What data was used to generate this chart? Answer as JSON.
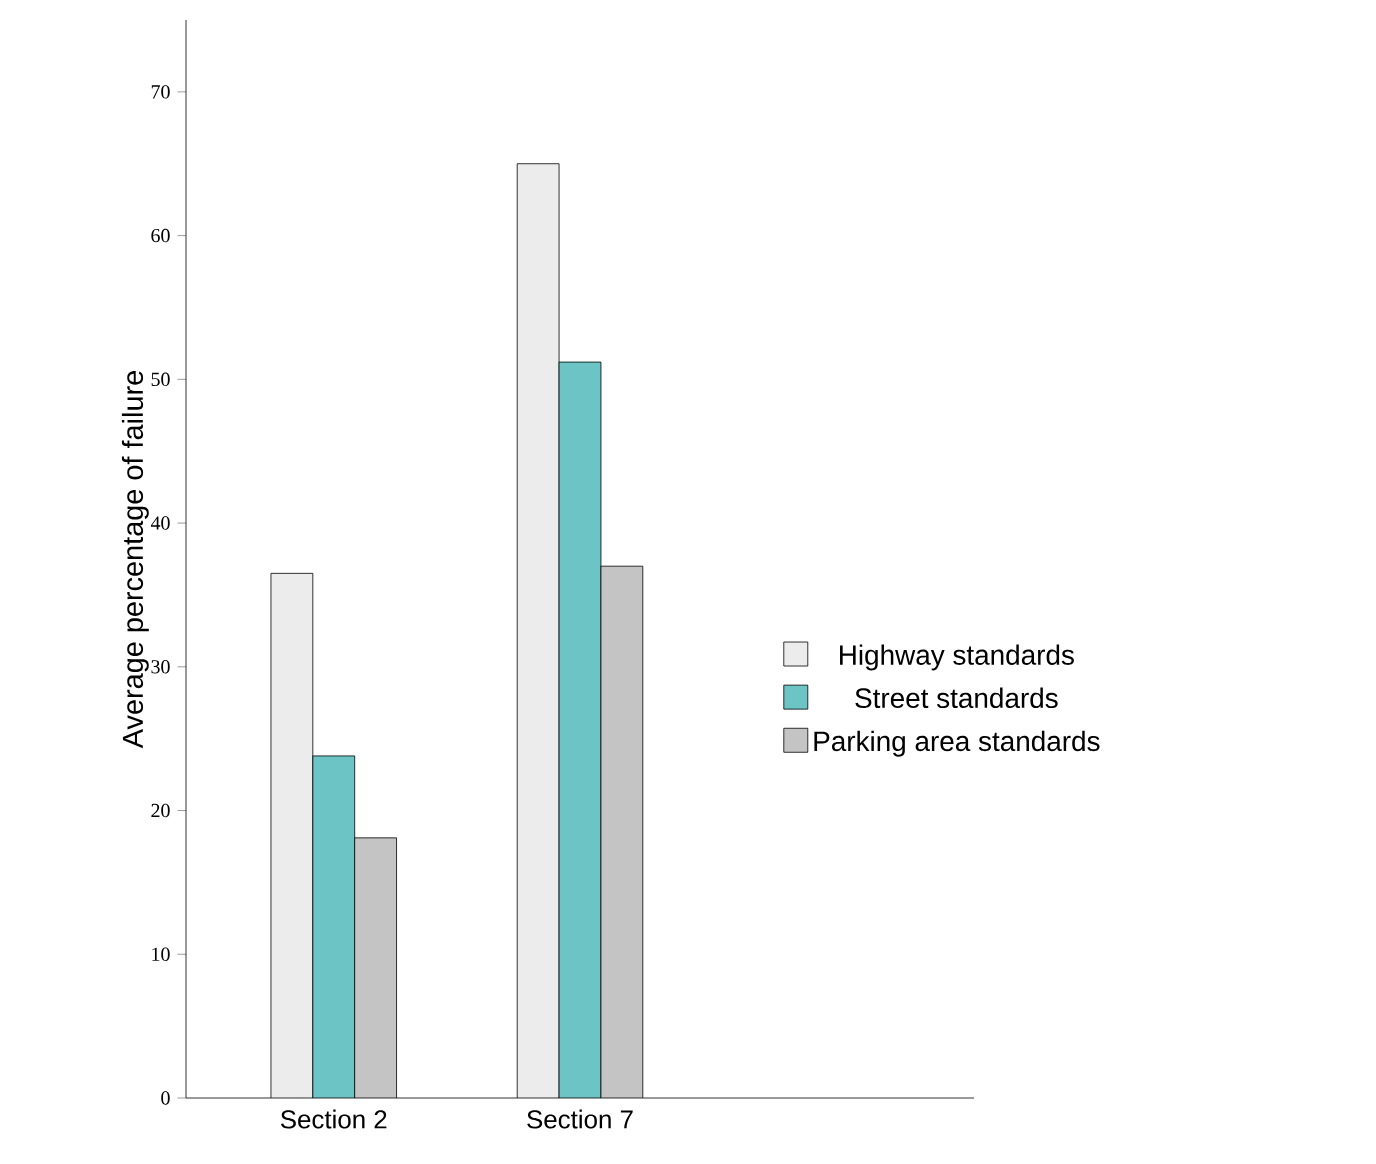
{
  "chart_data": {
    "type": "bar",
    "ylabel": "Average percentage of failure",
    "categories": [
      "Section 2",
      "Section 7"
    ],
    "series": [
      {
        "name": "Highway standards",
        "color": "#ececec",
        "values": [
          36.5,
          65
        ]
      },
      {
        "name": "Street standards",
        "color": "#6cc4c4",
        "values": [
          23.8,
          51.2
        ]
      },
      {
        "name": "Parking area standards",
        "color": "#c4c4c4",
        "values": [
          18.1,
          37
        ]
      }
    ],
    "ylim": [
      0,
      75
    ],
    "yticks": [
      0,
      10,
      20,
      30,
      40,
      50,
      60,
      70
    ],
    "legend": "right",
    "grid": false
  }
}
